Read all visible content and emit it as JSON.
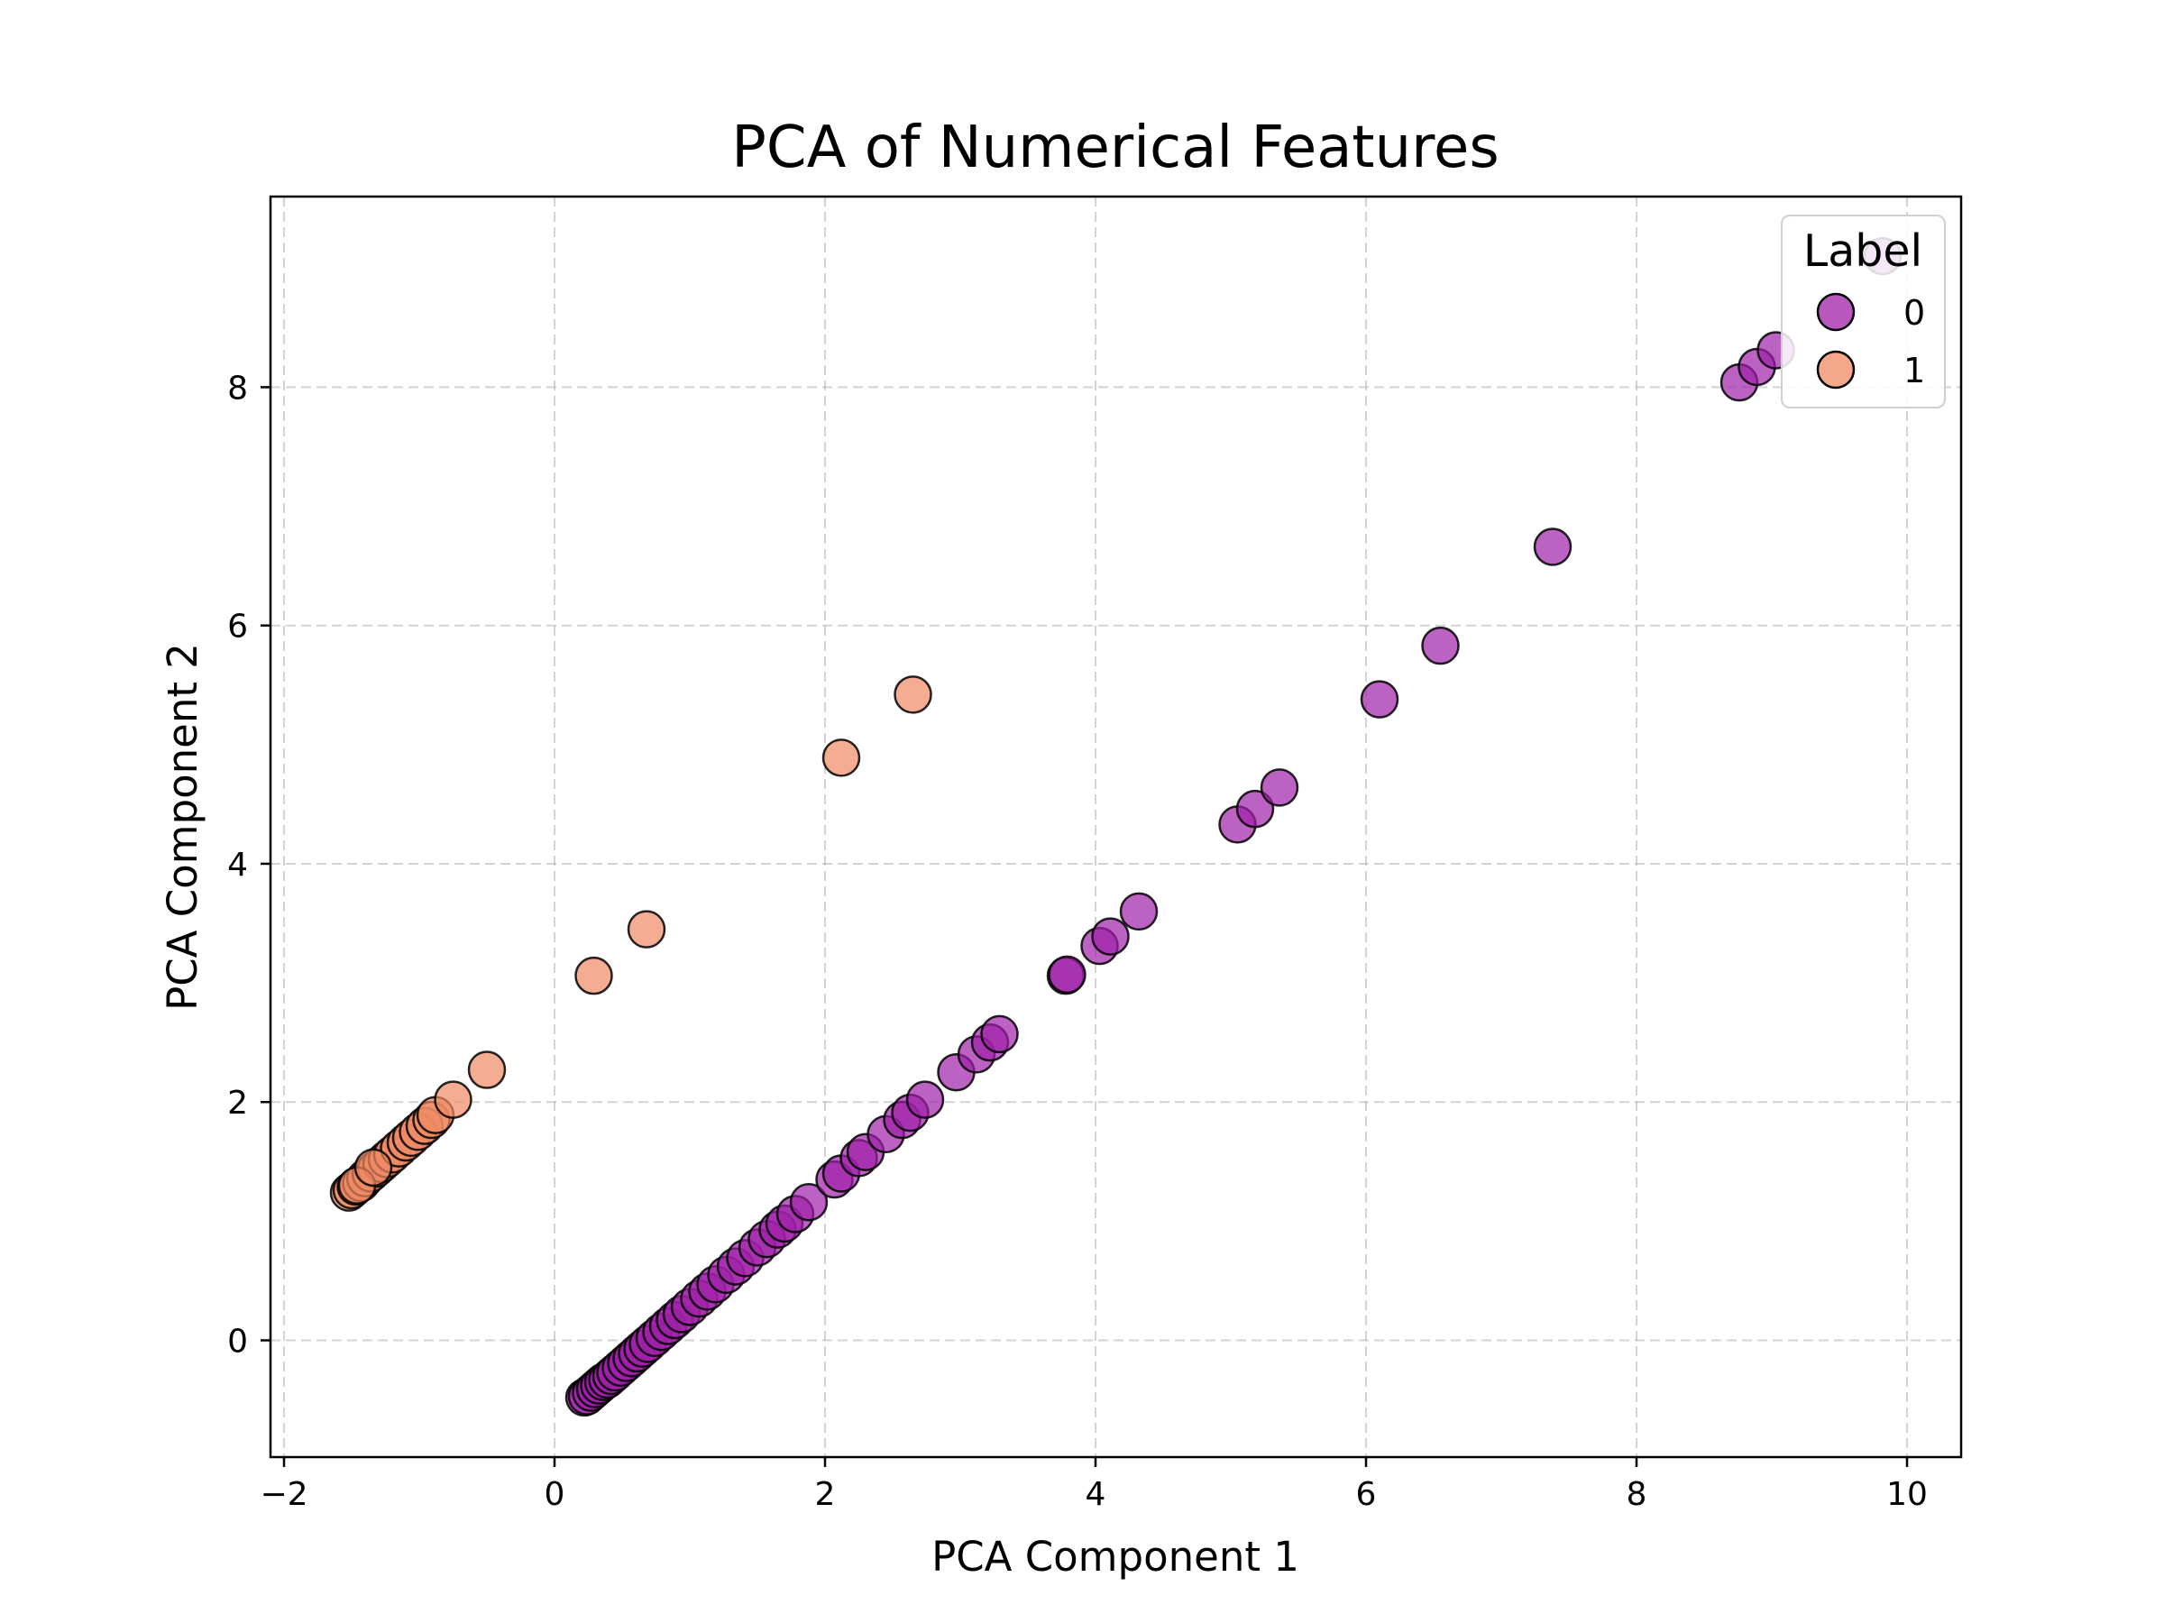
{
  "chart_data": {
    "type": "scatter",
    "title": "PCA of Numerical Features",
    "xlabel": "PCA Component 1",
    "ylabel": "PCA Component 2",
    "xlim": [
      -2.1,
      10.4
    ],
    "ylim": [
      -0.98,
      9.6
    ],
    "xticks": [
      -2,
      0,
      2,
      4,
      6,
      8,
      10
    ],
    "xtick_labels": [
      "−2",
      "0",
      "2",
      "4",
      "6",
      "8",
      "10"
    ],
    "yticks": [
      0,
      2,
      4,
      6,
      8
    ],
    "ytick_labels": [
      "0",
      "2",
      "4",
      "6",
      "8"
    ],
    "grid": true,
    "legend": {
      "title": "Label",
      "position": "top-right"
    },
    "series": [
      {
        "name": "0",
        "color": "#a020a8",
        "points": [
          [
            0.22,
            -0.48
          ],
          [
            0.24,
            -0.47
          ],
          [
            0.27,
            -0.44
          ],
          [
            0.3,
            -0.41
          ],
          [
            0.33,
            -0.38
          ],
          [
            0.36,
            -0.35
          ],
          [
            0.39,
            -0.33
          ],
          [
            0.42,
            -0.3
          ],
          [
            0.45,
            -0.27
          ],
          [
            0.49,
            -0.23
          ],
          [
            0.53,
            -0.19
          ],
          [
            0.57,
            -0.15
          ],
          [
            0.61,
            -0.11
          ],
          [
            0.65,
            -0.07
          ],
          [
            0.69,
            -0.03
          ],
          [
            0.74,
            0.02
          ],
          [
            0.79,
            0.07
          ],
          [
            0.84,
            0.12
          ],
          [
            0.89,
            0.17
          ],
          [
            0.94,
            0.22
          ],
          [
            1.0,
            0.28
          ],
          [
            1.07,
            0.35
          ],
          [
            1.13,
            0.41
          ],
          [
            1.19,
            0.47
          ],
          [
            1.27,
            0.55
          ],
          [
            1.34,
            0.62
          ],
          [
            1.41,
            0.69
          ],
          [
            1.5,
            0.78
          ],
          [
            1.57,
            0.85
          ],
          [
            1.65,
            0.93
          ],
          [
            1.7,
            0.98
          ],
          [
            1.78,
            1.06
          ],
          [
            1.88,
            1.16
          ],
          [
            2.07,
            1.35
          ],
          [
            2.12,
            1.4
          ],
          [
            2.25,
            1.53
          ],
          [
            2.3,
            1.58
          ],
          [
            2.45,
            1.73
          ],
          [
            2.57,
            1.85
          ],
          [
            2.63,
            1.91
          ],
          [
            2.74,
            2.02
          ],
          [
            2.97,
            2.25
          ],
          [
            3.12,
            2.4
          ],
          [
            3.22,
            2.5
          ],
          [
            3.29,
            2.57
          ],
          [
            3.78,
            3.06
          ],
          [
            3.79,
            3.07
          ],
          [
            4.03,
            3.31
          ],
          [
            4.11,
            3.39
          ],
          [
            4.32,
            3.6
          ],
          [
            5.05,
            4.33
          ],
          [
            5.18,
            4.46
          ],
          [
            5.36,
            4.64
          ],
          [
            6.1,
            5.38
          ],
          [
            6.55,
            5.83
          ],
          [
            7.38,
            6.66
          ],
          [
            8.76,
            8.04
          ],
          [
            8.89,
            8.17
          ],
          [
            9.03,
            8.31
          ],
          [
            9.82,
            9.1
          ]
        ]
      },
      {
        "name": "1",
        "color": "#f08a64",
        "points": [
          [
            -1.52,
            1.24
          ],
          [
            -1.5,
            1.26
          ],
          [
            -1.47,
            1.29
          ],
          [
            -1.43,
            1.32
          ],
          [
            -1.4,
            1.36
          ],
          [
            -1.36,
            1.4
          ],
          [
            -1.32,
            1.44
          ],
          [
            -1.28,
            1.48
          ],
          [
            -1.24,
            1.52
          ],
          [
            -1.2,
            1.56
          ],
          [
            -1.15,
            1.61
          ],
          [
            -1.1,
            1.66
          ],
          [
            -1.06,
            1.7
          ],
          [
            -1.01,
            1.75
          ],
          [
            -0.96,
            1.8
          ],
          [
            -0.91,
            1.85
          ],
          [
            -0.88,
            1.89
          ],
          [
            -0.75,
            2.02
          ],
          [
            -0.5,
            2.27
          ],
          [
            -1.46,
            1.3
          ],
          [
            -1.34,
            1.45
          ],
          [
            0.29,
            3.06
          ],
          [
            0.68,
            3.45
          ],
          [
            2.12,
            4.89
          ],
          [
            2.65,
            5.42
          ]
        ]
      }
    ]
  }
}
